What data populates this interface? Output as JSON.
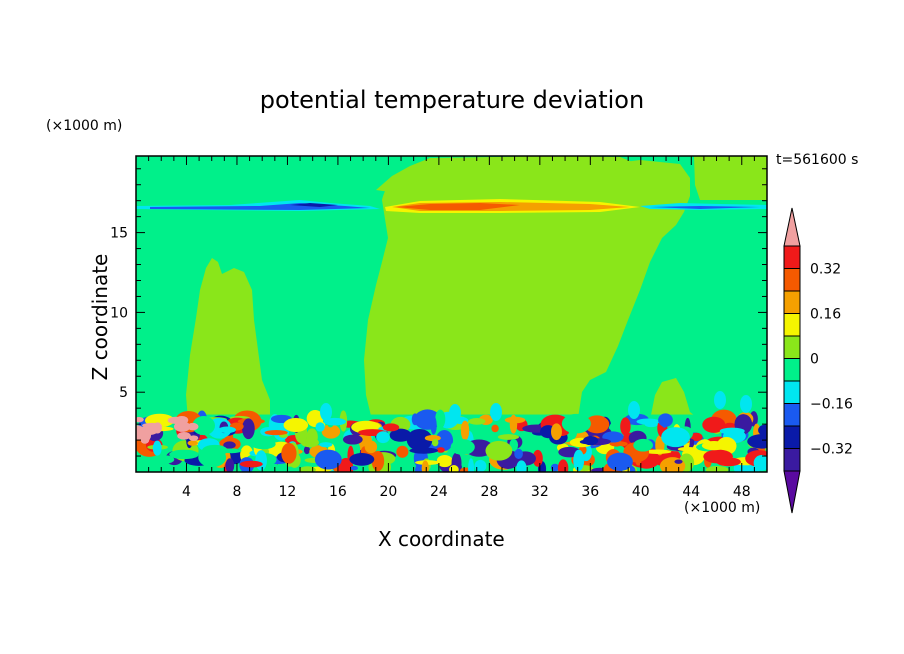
{
  "chart_data": {
    "type": "heatmap",
    "title": "potential temperature deviation",
    "xlabel": "X coordinate",
    "ylabel": "Z coordinate",
    "x_unit_label": "(×1000 m)",
    "y_unit_label": "(×1000 m)",
    "time_label": "t=561600 s",
    "xlim": [
      0,
      50
    ],
    "ylim": [
      0,
      19.8
    ],
    "x_ticks": [
      4,
      8,
      12,
      16,
      20,
      24,
      28,
      32,
      36,
      40,
      44,
      48
    ],
    "y_ticks": [
      5,
      10,
      15
    ],
    "colorbar": {
      "tick_labels": [
        "0.32",
        "0.16",
        "0",
        "−0.16",
        "−0.32"
      ],
      "tick_values": [
        0.32,
        0.16,
        0,
        -0.16,
        -0.32
      ],
      "levels": [
        -0.4,
        -0.32,
        -0.24,
        -0.16,
        -0.08,
        0,
        0.08,
        0.16,
        0.24,
        0.32,
        0.4
      ],
      "colors": [
        "#5a0aa0",
        "#3a1aa0",
        "#0a1aa8",
        "#1a5af0",
        "#00e6f0",
        "#00f08a",
        "#8ae61a",
        "#f5f500",
        "#f5a000",
        "#f55a00",
        "#f01a1a",
        "#f0a0a0"
      ]
    },
    "field": {
      "background_value": 0.0,
      "notes": [
        {
          "region": "tropopause band",
          "z": 16.8,
          "x": [
            0,
            18
          ],
          "value": -0.2
        },
        {
          "region": "tropopause band",
          "z": 16.8,
          "x": [
            20,
            40
          ],
          "value": 0.3
        },
        {
          "region": "tropopause band",
          "z": 16.8,
          "x": [
            41,
            50
          ],
          "value": -0.2
        },
        {
          "region": "positive plume",
          "x": [
            4,
            9
          ],
          "z": [
            3.5,
            13.3
          ],
          "value": 0.05
        },
        {
          "region": "positive plume",
          "x": [
            18,
            42
          ],
          "z": [
            3.5,
            19.8
          ],
          "value": 0.05
        },
        {
          "region": "boundary layer",
          "x": [
            0,
            50
          ],
          "z": [
            0,
            3.6
          ],
          "value_range": [
            -0.4,
            0.4
          ]
        }
      ]
    }
  }
}
